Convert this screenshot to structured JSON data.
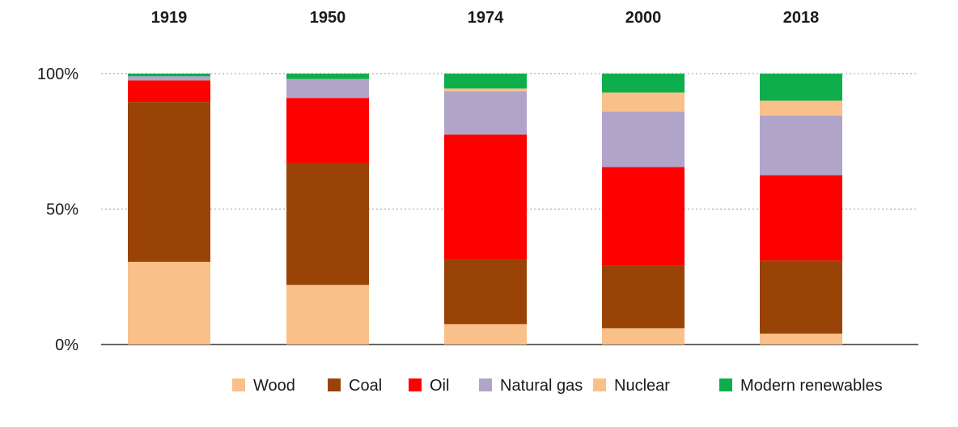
{
  "chart_data": {
    "type": "bar",
    "stacked": true,
    "title": "",
    "xlabel": "",
    "ylabel": "",
    "categories": [
      "1919",
      "1950",
      "1974",
      "2000",
      "2018"
    ],
    "ylim": [
      0,
      100
    ],
    "y_ticks": [
      {
        "value": 0,
        "label": "0%"
      },
      {
        "value": 50,
        "label": "50%"
      },
      {
        "value": 100,
        "label": "100%"
      }
    ],
    "grid": true,
    "legend_position": "bottom",
    "series": [
      {
        "name": "Wood",
        "color": "#f9c089",
        "values": [
          30.5,
          22,
          7.5,
          6,
          4
        ]
      },
      {
        "name": "Coal",
        "color": "#994406",
        "values": [
          59,
          45,
          24,
          23,
          27
        ]
      },
      {
        "name": "Oil",
        "color": "#fe0000",
        "values": [
          8,
          24,
          46,
          36.5,
          31.5
        ]
      },
      {
        "name": "Natural gas",
        "color": "#b0a5c9",
        "values": [
          1.5,
          7,
          16,
          20.5,
          22
        ]
      },
      {
        "name": "Nuclear",
        "color": "#f9c089",
        "values": [
          0,
          0,
          1,
          7,
          5.5
        ]
      },
      {
        "name": "Modern renewables",
        "color": "#0fae4d",
        "values": [
          1,
          2,
          5.5,
          7,
          10
        ]
      }
    ]
  }
}
